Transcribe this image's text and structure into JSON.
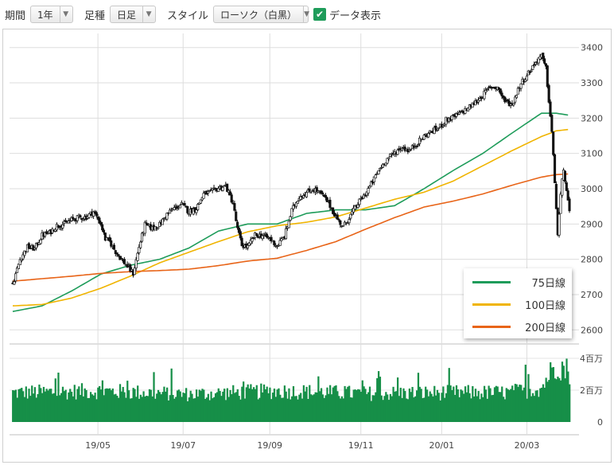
{
  "toolbar": {
    "period_label": "期間",
    "period_value": "1年",
    "ashi_label": "足種",
    "ashi_value": "日足",
    "style_label": "スタイル",
    "style_value": "ローソク（白黒）",
    "data_display_checked": true,
    "data_display_label": "データ表示",
    "dropdown_icon": "chevron-down-icon",
    "check_icon": "checkmark-icon"
  },
  "chart_data": {
    "type": "candlestick",
    "x_ticks": [
      "19/05",
      "19/07",
      "19/09",
      "19/11",
      "20/01",
      "20/03"
    ],
    "y_ticks": [
      "3400",
      "3300",
      "3200",
      "3100",
      "3000",
      "2900",
      "2800",
      "2700",
      "2600"
    ],
    "ylim": [
      2560,
      3440
    ],
    "volume_ticks": [
      "4百万",
      "2百万",
      "0"
    ],
    "volume_ylim": [
      0,
      4500000
    ],
    "grid": true,
    "legend_position": "bottom-right",
    "price_anchors": [
      [
        0,
        2730
      ],
      [
        5,
        2800
      ],
      [
        10,
        2835
      ],
      [
        15,
        2830
      ],
      [
        20,
        2868
      ],
      [
        25,
        2875
      ],
      [
        30,
        2895
      ],
      [
        35,
        2900
      ],
      [
        40,
        2912
      ],
      [
        45,
        2918
      ],
      [
        50,
        2920
      ],
      [
        55,
        2935
      ],
      [
        60,
        2900
      ],
      [
        63,
        2858
      ],
      [
        66,
        2850
      ],
      [
        70,
        2822
      ],
      [
        74,
        2800
      ],
      [
        78,
        2780
      ],
      [
        82,
        2760
      ],
      [
        86,
        2835
      ],
      [
        90,
        2898
      ],
      [
        95,
        2888
      ],
      [
        100,
        2898
      ],
      [
        105,
        2928
      ],
      [
        110,
        2945
      ],
      [
        115,
        2955
      ],
      [
        120,
        2935
      ],
      [
        125,
        2945
      ],
      [
        130,
        2985
      ],
      [
        135,
        2990
      ],
      [
        140,
        3002
      ],
      [
        145,
        3008
      ],
      [
        150,
        2958
      ],
      [
        153,
        2885
      ],
      [
        156,
        2840
      ],
      [
        160,
        2835
      ],
      [
        165,
        2868
      ],
      [
        170,
        2868
      ],
      [
        175,
        2858
      ],
      [
        180,
        2838
      ],
      [
        185,
        2865
      ],
      [
        190,
        2938
      ],
      [
        195,
        2978
      ],
      [
        200,
        2988
      ],
      [
        205,
        3000
      ],
      [
        210,
        2985
      ],
      [
        215,
        2960
      ],
      [
        220,
        2920
      ],
      [
        225,
        2892
      ],
      [
        230,
        2925
      ],
      [
        235,
        2958
      ],
      [
        240,
        2985
      ],
      [
        245,
        3020
      ],
      [
        250,
        3058
      ],
      [
        255,
        3085
      ],
      [
        260,
        3102
      ],
      [
        265,
        3118
      ],
      [
        270,
        3108
      ],
      [
        275,
        3128
      ],
      [
        280,
        3148
      ],
      [
        285,
        3162
      ],
      [
        290,
        3172
      ],
      [
        295,
        3195
      ],
      [
        300,
        3202
      ],
      [
        305,
        3215
      ],
      [
        310,
        3228
      ],
      [
        315,
        3245
      ],
      [
        320,
        3265
      ],
      [
        325,
        3288
      ],
      [
        330,
        3288
      ],
      [
        335,
        3248
      ],
      [
        340,
        3238
      ],
      [
        345,
        3292
      ],
      [
        350,
        3322
      ],
      [
        355,
        3352
      ],
      [
        358,
        3370
      ],
      [
        360,
        3375
      ],
      [
        363,
        3340
      ],
      [
        365,
        3250
      ],
      [
        367,
        3160
      ],
      [
        369,
        3020
      ],
      [
        371,
        2870
      ],
      [
        373,
        2980
      ],
      [
        375,
        3060
      ],
      [
        377,
        2990
      ],
      [
        379,
        2930
      ]
    ],
    "volume_anchors": [
      [
        0,
        1800000
      ],
      [
        60,
        1900000
      ],
      [
        120,
        1700000
      ],
      [
        180,
        1900000
      ],
      [
        240,
        1750000
      ],
      [
        300,
        1800000
      ],
      [
        340,
        1800000
      ],
      [
        360,
        2100000
      ],
      [
        365,
        2900000
      ],
      [
        368,
        3300000
      ],
      [
        371,
        3600000
      ],
      [
        375,
        3300000
      ],
      [
        379,
        3100000
      ]
    ],
    "ma_series": [
      {
        "name": "75日線",
        "color": "#1e9c5a",
        "values": [
          [
            0,
            2652
          ],
          [
            20,
            2668
          ],
          [
            40,
            2710
          ],
          [
            60,
            2758
          ],
          [
            80,
            2783
          ],
          [
            100,
            2800
          ],
          [
            120,
            2832
          ],
          [
            140,
            2880
          ],
          [
            160,
            2900
          ],
          [
            180,
            2900
          ],
          [
            200,
            2930
          ],
          [
            220,
            2940
          ],
          [
            240,
            2940
          ],
          [
            260,
            2952
          ],
          [
            280,
            3000
          ],
          [
            300,
            3052
          ],
          [
            320,
            3100
          ],
          [
            340,
            3158
          ],
          [
            360,
            3214
          ],
          [
            370,
            3214
          ],
          [
            379,
            3208
          ]
        ]
      },
      {
        "name": "100日線",
        "color": "#f0b400",
        "values": [
          [
            0,
            2668
          ],
          [
            20,
            2672
          ],
          [
            40,
            2690
          ],
          [
            60,
            2718
          ],
          [
            80,
            2752
          ],
          [
            100,
            2790
          ],
          [
            120,
            2820
          ],
          [
            140,
            2850
          ],
          [
            160,
            2878
          ],
          [
            180,
            2895
          ],
          [
            200,
            2905
          ],
          [
            220,
            2920
          ],
          [
            240,
            2945
          ],
          [
            260,
            2970
          ],
          [
            280,
            2990
          ],
          [
            300,
            3022
          ],
          [
            320,
            3065
          ],
          [
            340,
            3108
          ],
          [
            360,
            3148
          ],
          [
            370,
            3164
          ],
          [
            379,
            3168
          ]
        ]
      },
      {
        "name": "200日線",
        "color": "#e86418",
        "values": [
          [
            0,
            2738
          ],
          [
            20,
            2745
          ],
          [
            40,
            2752
          ],
          [
            60,
            2760
          ],
          [
            80,
            2765
          ],
          [
            100,
            2768
          ],
          [
            120,
            2772
          ],
          [
            140,
            2782
          ],
          [
            160,
            2795
          ],
          [
            180,
            2803
          ],
          [
            200,
            2825
          ],
          [
            220,
            2850
          ],
          [
            240,
            2885
          ],
          [
            260,
            2918
          ],
          [
            280,
            2948
          ],
          [
            300,
            2965
          ],
          [
            320,
            2985
          ],
          [
            340,
            3010
          ],
          [
            360,
            3033
          ],
          [
            370,
            3040
          ],
          [
            379,
            3042
          ]
        ]
      }
    ]
  }
}
